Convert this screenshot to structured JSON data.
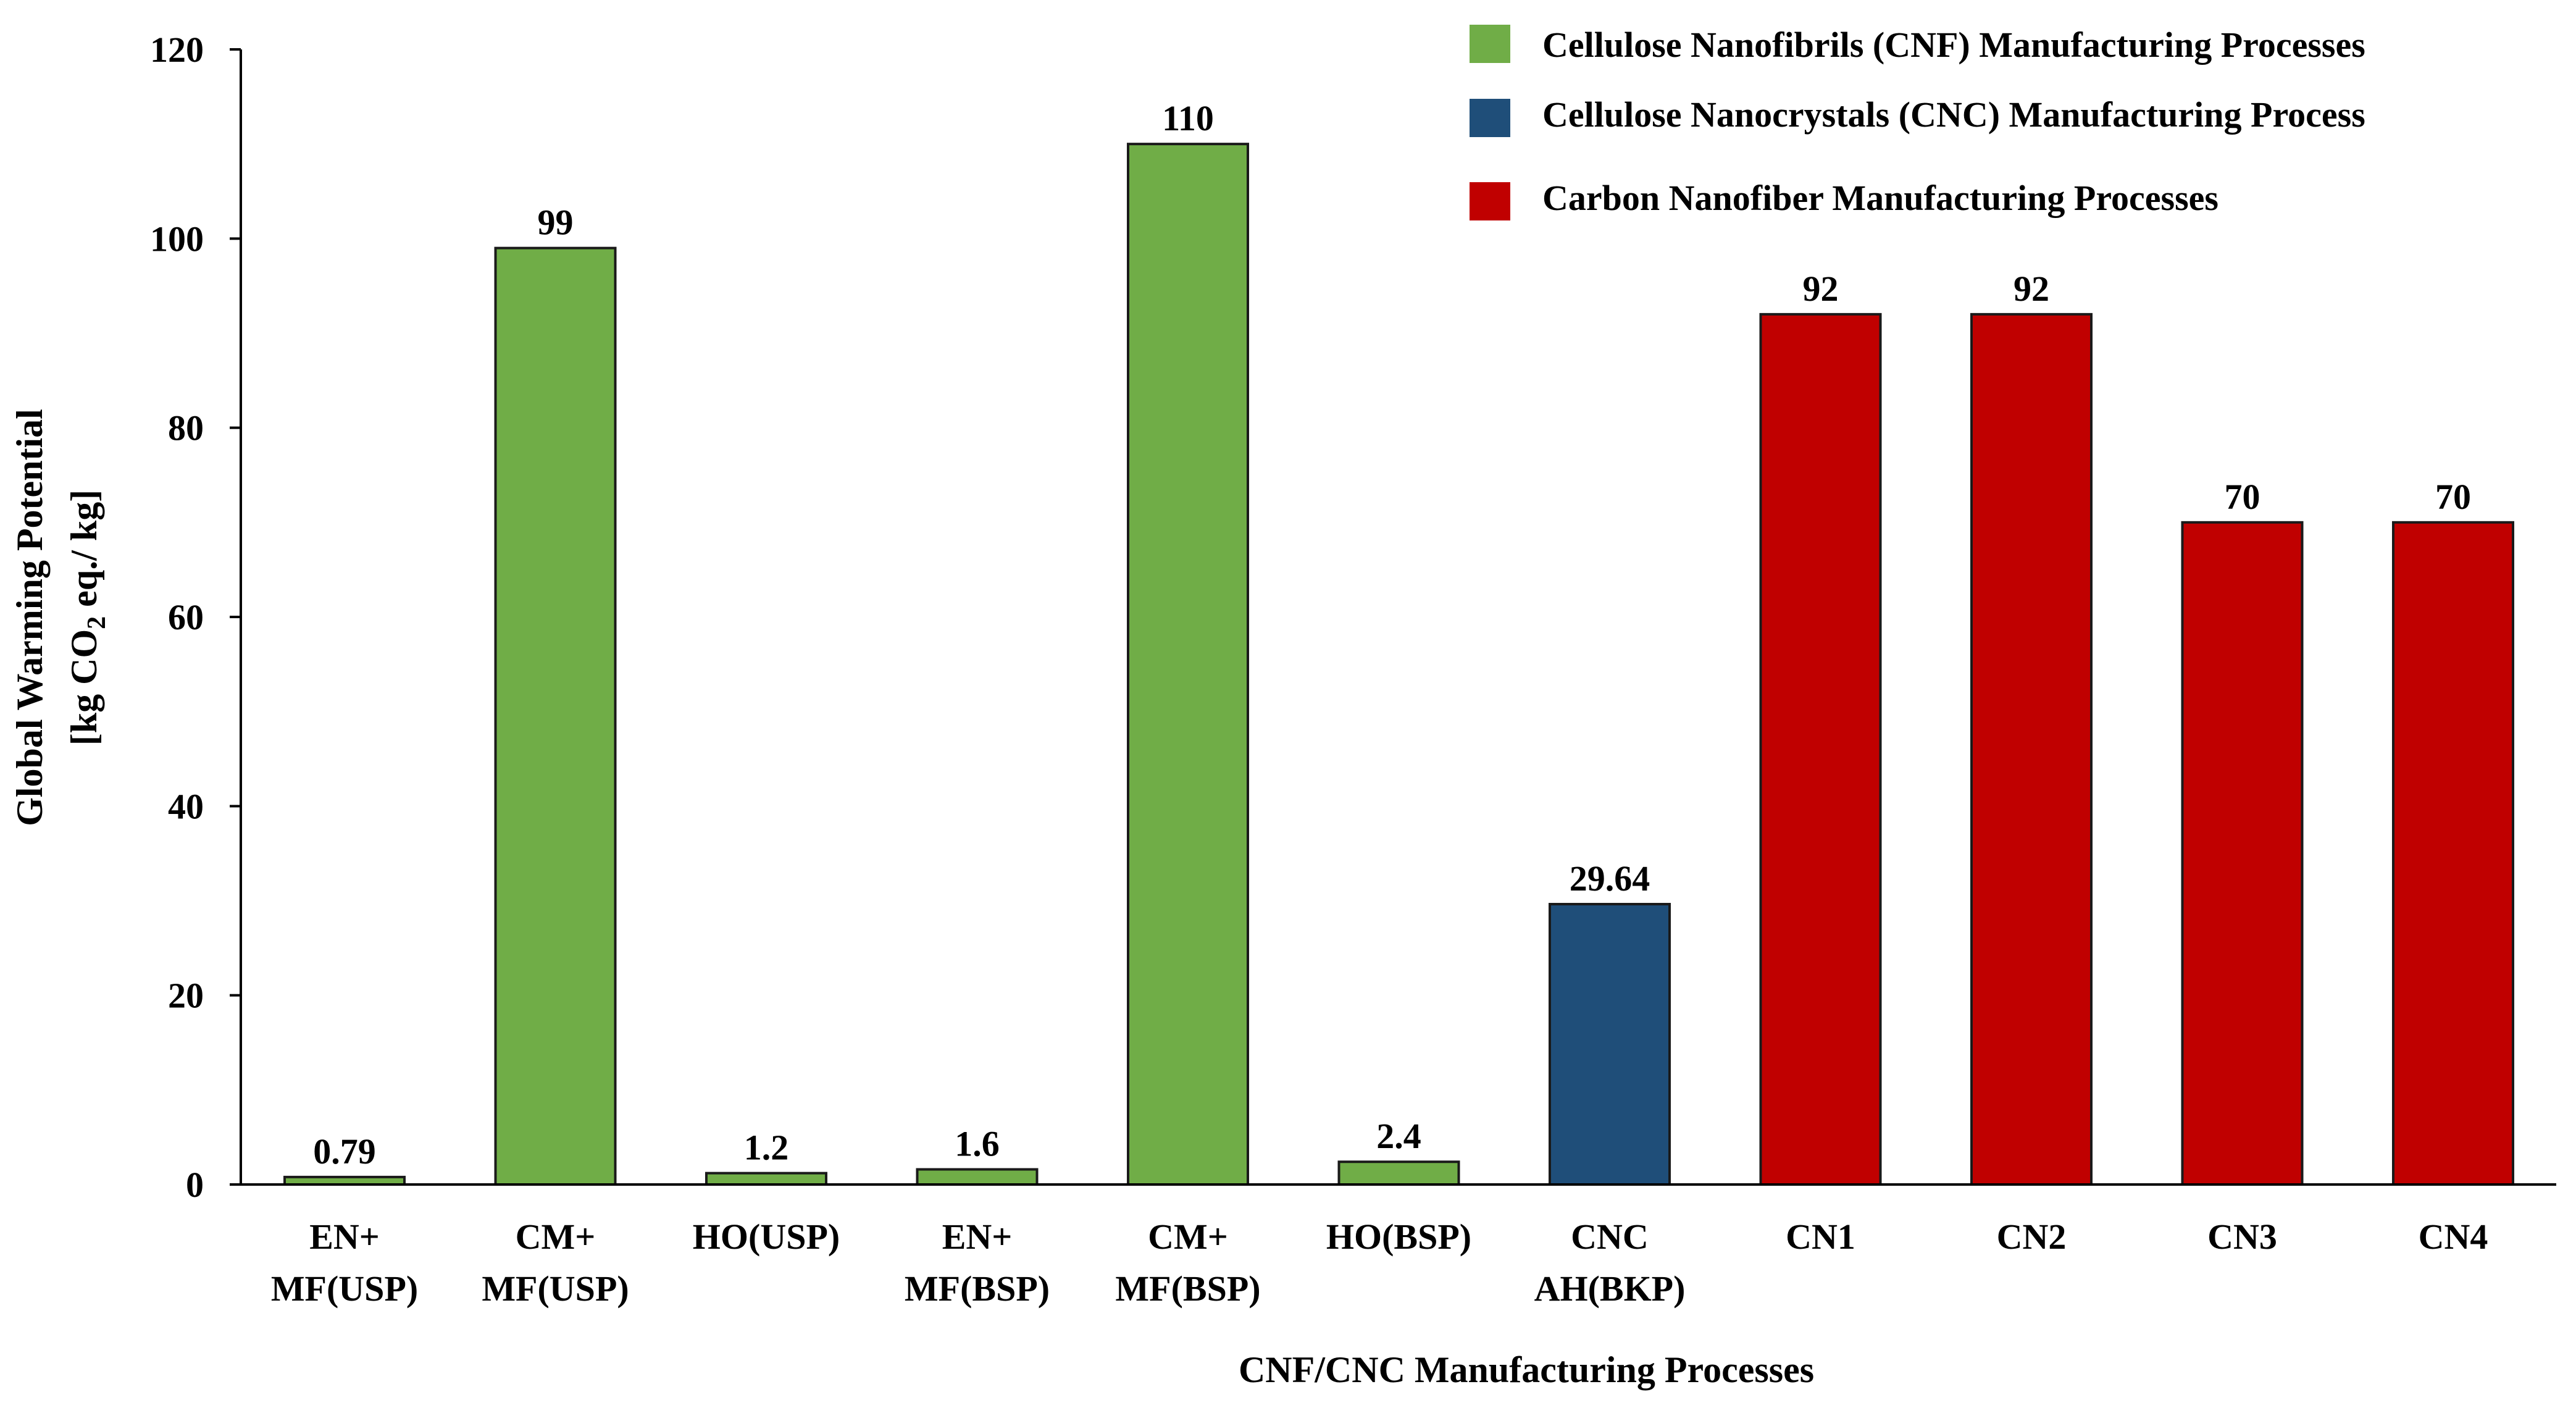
{
  "chart_data": {
    "type": "bar",
    "categories": [
      "EN+ MF(USP)",
      "CM+ MF(USP)",
      "HO(USP)",
      "EN+ MF(BSP)",
      "CM+ MF(BSP)",
      "HO(BSP)",
      "CNC AH(BKP)",
      "CN1",
      "CN2",
      "CN3",
      "CN4"
    ],
    "category_lines": [
      [
        "EN+",
        "MF(USP)"
      ],
      [
        "CM+",
        "MF(USP)"
      ],
      [
        "HO(USP)"
      ],
      [
        "EN+",
        "MF(BSP)"
      ],
      [
        "CM+",
        "MF(BSP)"
      ],
      [
        "HO(BSP)"
      ],
      [
        "CNC",
        "AH(BKP)"
      ],
      [
        "CN1"
      ],
      [
        "CN2"
      ],
      [
        "CN3"
      ],
      [
        "CN4"
      ]
    ],
    "values": [
      0.79,
      99,
      1.2,
      1.6,
      110,
      2.4,
      29.64,
      92,
      92,
      70,
      70
    ],
    "data_labels": [
      "0.79",
      "99",
      "1.2",
      "1.6",
      "110",
      "2.4",
      "29.64",
      "92",
      "92",
      "70",
      "70"
    ],
    "groups": [
      "cnf",
      "cnf",
      "cnf",
      "cnf",
      "cnf",
      "cnf",
      "cnc",
      "carbon",
      "carbon",
      "carbon",
      "carbon"
    ],
    "legend": [
      {
        "key": "cnf",
        "label": "Cellulose Nanofibrils (CNF) Manufacturing Processes",
        "color": "#70ad47"
      },
      {
        "key": "cnc",
        "label": "Cellulose Nanocrystals (CNC) Manufacturing Process",
        "color": "#1f4e79"
      },
      {
        "key": "carbon",
        "label": "Carbon Nanofiber Manufacturing Processes",
        "color": "#c00000"
      }
    ],
    "title": "",
    "xlabel": "CNF/CNC Manufacturing Processes",
    "ylabel_line1": "Global Warming Potential",
    "ylabel_line2_prefix": "[kg CO",
    "ylabel_line2_sub": "2",
    "ylabel_line2_suffix": " eq./ kg]",
    "ylim": [
      0,
      120
    ],
    "yticks": [
      0,
      20,
      40,
      60,
      80,
      100,
      120
    ],
    "legend_position": "top-right",
    "grid": false
  }
}
